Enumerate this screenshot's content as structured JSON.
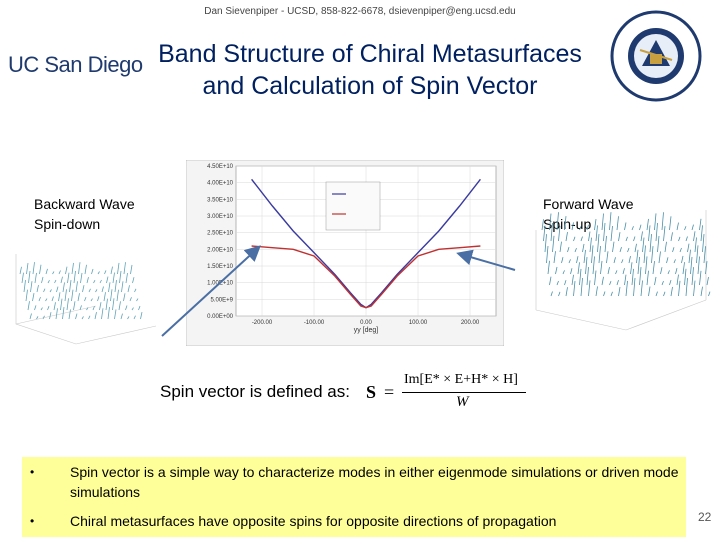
{
  "slide": {
    "header_line": "Dan Sievenpiper - UCSD, 858-822-6678, dsievenpiper@eng.ucsd.edu",
    "logo_text": "UC San Diego",
    "title_line1": "Band Structure of Chiral Metasurfaces",
    "title_line2": "and Calculation of Spin Vector",
    "seal_text": "AIR FORCE OFFICE OF SCIENTIFIC RESEARCH",
    "left_caption_line1": "Backward Wave",
    "left_caption_line2": "Spin-down",
    "right_caption_line1": "Forward Wave",
    "right_caption_line2": "Spin-up",
    "formula_label": "Spin vector is defined as:",
    "formula_lhs": "S",
    "formula_numerator": "Im[E* × E+H* × H]",
    "formula_denominator": "W",
    "bullets": [
      "Spin vector is a simple way to characterize modes in either eigenmode simulations or driven mode simulations",
      "Chiral metasurfaces have opposite spins for opposite directions of propagation"
    ],
    "bullet_mark": "•",
    "page_number": "22"
  },
  "chart_data": {
    "type": "line",
    "xlabel": "yy [deg]",
    "xlim": [
      -250,
      250
    ],
    "ylim": [
      0,
      45000000000.0
    ],
    "x_ticks": [
      "-200.00",
      "-100.00",
      "0.00",
      "100.00",
      "200.00"
    ],
    "y_ticks": [
      "0.00E+00",
      "5.00E+9",
      "1.00E+10",
      "1.50E+10",
      "2.00E+10",
      "2.50E+10",
      "3.00E+10",
      "3.50E+10",
      "4.00E+10",
      "4.50E+10"
    ],
    "series": [
      {
        "color": "#3a3aa0",
        "x": [
          -220,
          -180,
          -140,
          -100,
          -60,
          -30,
          -10,
          0,
          10,
          30,
          60,
          100,
          140,
          180,
          220
        ],
        "y": [
          41000000000.0,
          33000000000.0,
          25500000000.0,
          19000000000.0,
          12500000000.0,
          7000000000.0,
          3500000000.0,
          2500000000.0,
          3500000000.0,
          7000000000.0,
          12500000000.0,
          19000000000.0,
          25500000000.0,
          33000000000.0,
          41000000000.0
        ]
      },
      {
        "color": "#c03030",
        "x": [
          -220,
          -180,
          -140,
          -100,
          -60,
          -30,
          -10,
          0,
          10,
          30,
          60,
          100,
          140,
          180,
          220
        ],
        "y": [
          21000000000.0,
          20500000000.0,
          20000000000.0,
          18000000000.0,
          12000000000.0,
          6500000000.0,
          3000000000.0,
          2500000000.0,
          3000000000.0,
          6500000000.0,
          12000000000.0,
          18000000000.0,
          20000000000.0,
          20500000000.0,
          21000000000.0
        ]
      }
    ],
    "legend": "top-center",
    "grid": true,
    "colors": {
      "blue": "#3a3aa0",
      "red": "#c03030",
      "title_blue": "#002060",
      "bullet_bg": "#ffff99",
      "arrow": "#4a6fa5"
    }
  }
}
